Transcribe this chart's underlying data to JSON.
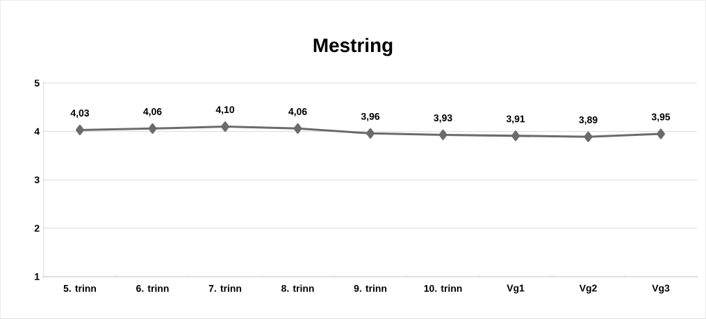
{
  "chart_data": {
    "type": "line",
    "title": "Mestring",
    "categories": [
      "5. trinn",
      "6. trinn",
      "7. trinn",
      "8. trinn",
      "9. trinn",
      "10. trinn",
      "Vg1",
      "Vg2",
      "Vg3"
    ],
    "values": [
      4.03,
      4.06,
      4.1,
      4.06,
      3.96,
      3.93,
      3.91,
      3.89,
      3.95
    ],
    "value_labels": [
      "4,03",
      "4,06",
      "4,10",
      "4,06",
      "3,96",
      "3,93",
      "3,91",
      "3,89",
      "3,95"
    ],
    "color": "#6b6b6b",
    "marker": "diamond",
    "line_style": "solid",
    "ylim": [
      1,
      5
    ],
    "yticks": [
      1,
      2,
      3,
      4,
      5
    ],
    "grid": "y"
  }
}
